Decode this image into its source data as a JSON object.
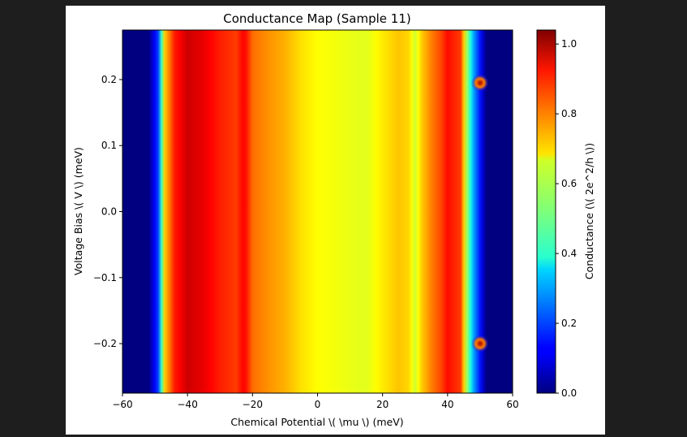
{
  "chart_data": {
    "type": "heatmap",
    "title": "Conductance Map (Sample 11)",
    "xlabel": "Chemical Potential \\( \\mu \\) (meV)",
    "ylabel": "Voltage Bias \\( V \\) (meV)",
    "colorbar_label": "Conductance (\\( 2e^2/h \\))",
    "colormap": "jet",
    "xlim": [
      -60,
      60
    ],
    "ylim": [
      0.275,
      -0.275
    ],
    "clim": [
      0,
      1.04
    ],
    "x_ticks": [
      -60,
      -40,
      -20,
      0,
      20,
      40,
      60
    ],
    "x_tick_labels": [
      "−60",
      "−40",
      "−20",
      "0",
      "20",
      "40",
      "60"
    ],
    "y_ticks": [
      -0.2,
      -0.1,
      0.0,
      0.1,
      0.2
    ],
    "y_tick_labels": [
      "−0.2",
      "−0.1",
      "0.0",
      "0.1",
      "0.2"
    ],
    "colorbar_ticks": [
      0.0,
      0.2,
      0.4,
      0.6,
      0.8,
      1.0
    ],
    "colorbar_tick_labels": [
      "0.0",
      "0.2",
      "0.4",
      "0.6",
      "0.8",
      "1.0"
    ],
    "gap_edges_meV": [
      -48,
      47
    ],
    "conductance_profile": {
      "mu": [
        -60,
        -52,
        -49,
        -47,
        -44,
        -40,
        -35,
        -30,
        -25,
        -22.5,
        -20,
        -15,
        -10,
        -5,
        0,
        5,
        10,
        15,
        20,
        25,
        28,
        30,
        32,
        35,
        38,
        40,
        44,
        46,
        48,
        52,
        60
      ],
      "G": [
        0.0,
        0.0,
        0.2,
        0.7,
        0.88,
        0.96,
        0.93,
        0.88,
        0.85,
        0.92,
        0.8,
        0.76,
        0.73,
        0.68,
        0.65,
        0.64,
        0.63,
        0.62,
        0.67,
        0.71,
        0.69,
        0.6,
        0.7,
        0.78,
        0.84,
        0.9,
        0.85,
        0.55,
        0.3,
        0.0,
        0.0
      ]
    },
    "hot_spots": [
      {
        "mu": 50,
        "V": -0.2,
        "G": 1.0
      },
      {
        "mu": 50,
        "V": 0.195,
        "G": 1.0
      }
    ]
  }
}
